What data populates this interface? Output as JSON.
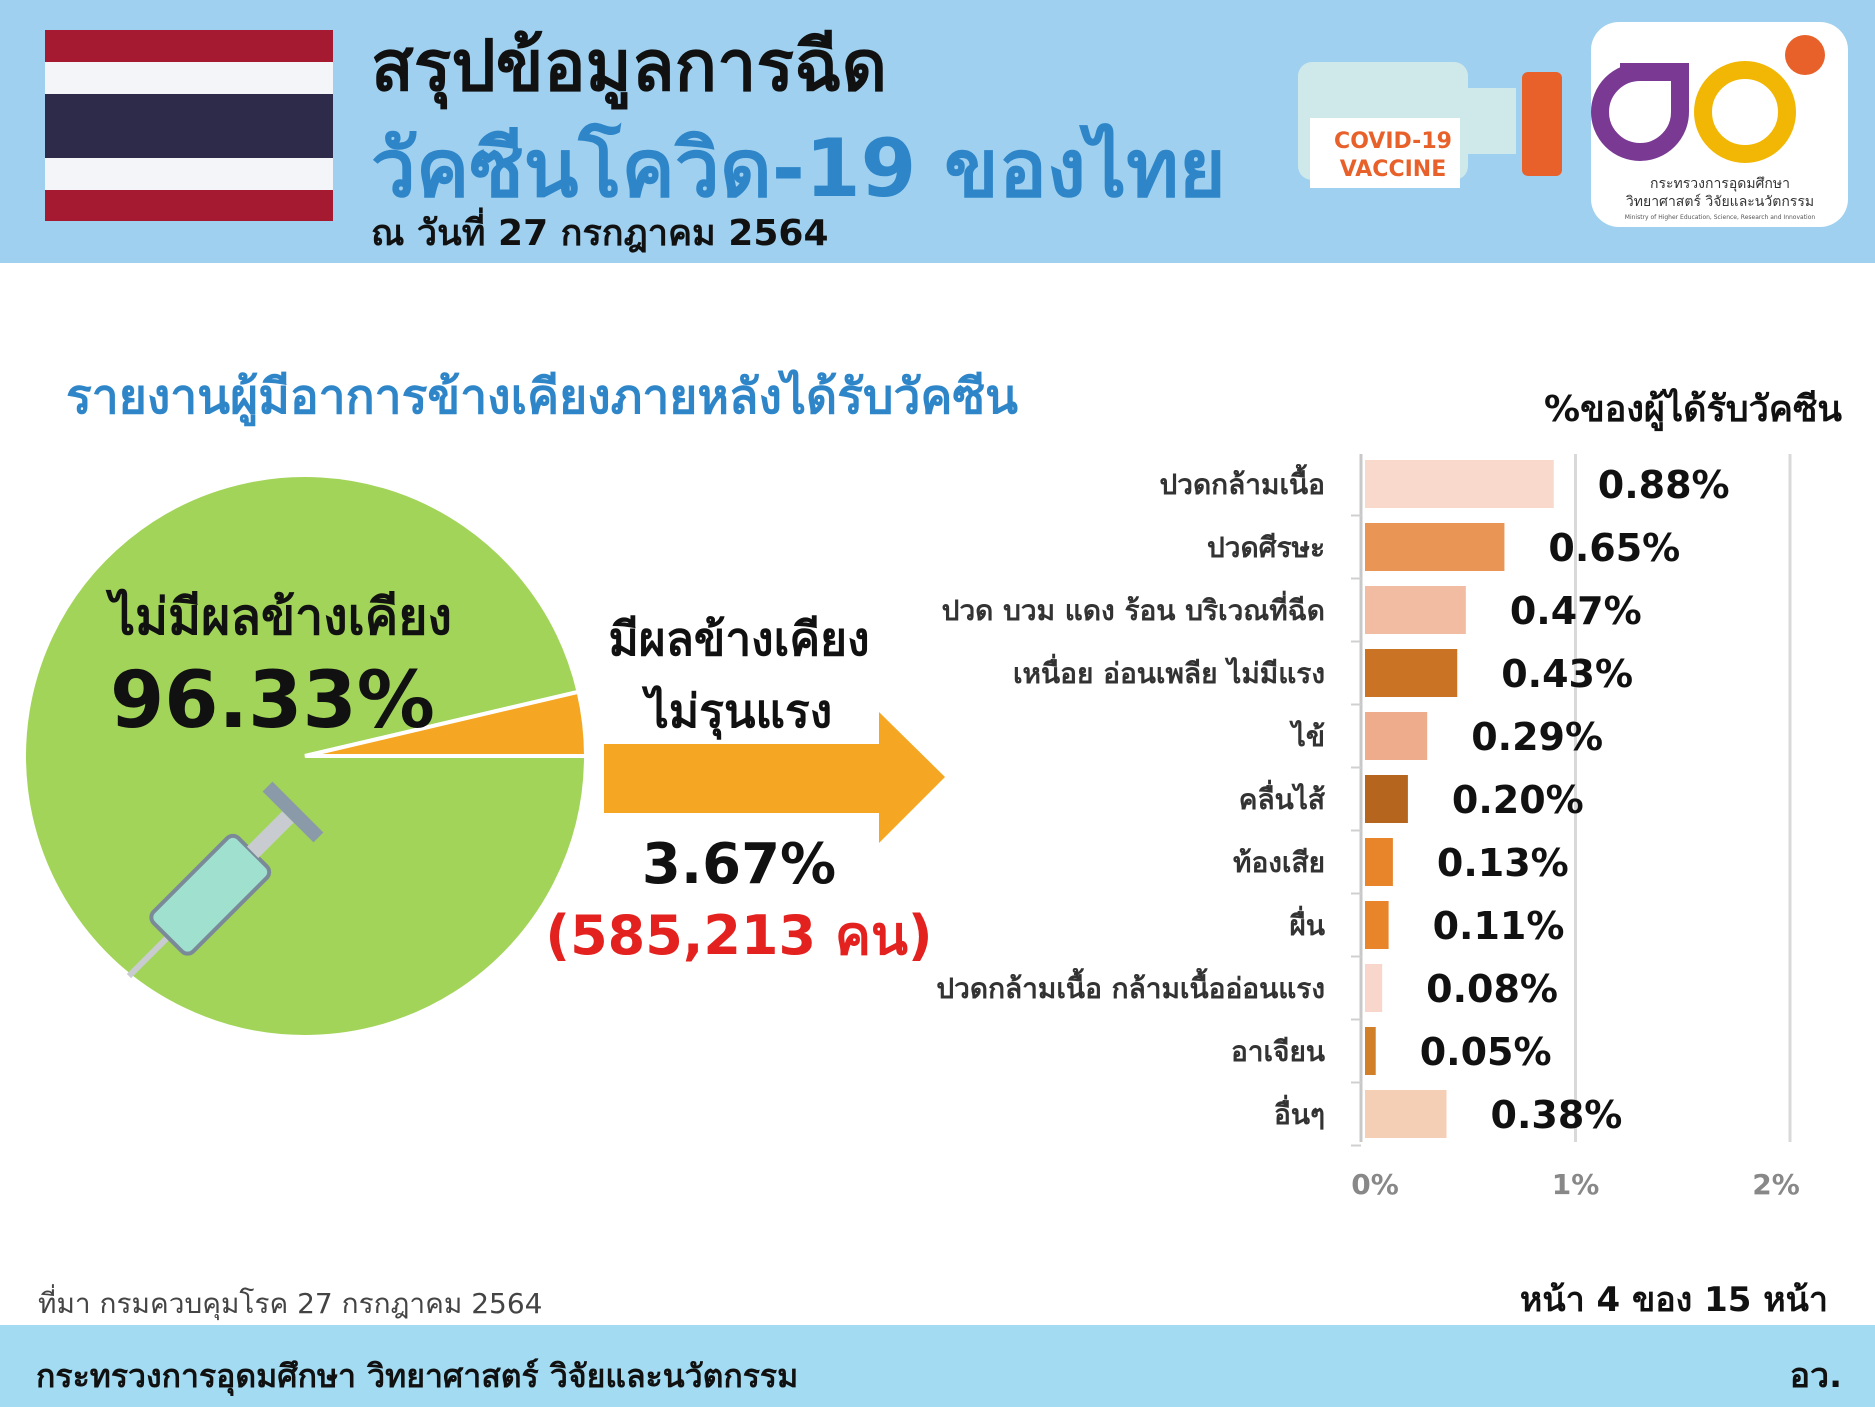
{
  "header": {
    "title": "สรุปข้อมูลการฉีด",
    "subtitle": "วัคซีนโควิด-19 ของไทย",
    "date": "ณ วันที่ 27 กรกฎาคม 2564",
    "vial_label": [
      "COVID-19",
      "VACCINE"
    ],
    "logo_org_th": [
      "กระทรวงการอุดมศึกษา",
      "วิทยาศาสตร์ วิจัยและนวัตกรรม"
    ],
    "logo_org_en": "Ministry of Higher Education, Science, Research and Innovation"
  },
  "section_title": "รายงานผู้มีอาการข้างเคียงภายหลังได้รับวัคซีน",
  "chart_data": [
    {
      "type": "pie",
      "categories": [
        "ไม่มีผลข้างเคียง",
        "มีผลข้างเคียง\nไม่รุนแรง"
      ],
      "values": [
        96.33,
        3.67
      ],
      "value_labels": [
        "96.33%",
        "3.67%"
      ],
      "colors": [
        "#a2d45a",
        "#f5a623"
      ],
      "annotations": [
        "(585,213 คน)"
      ]
    },
    {
      "type": "bar",
      "orientation": "horizontal",
      "title": "%ของผู้ได้รับวัคซีน",
      "categories": [
        "ปวดกล้ามเนื้อ",
        "ปวดศีรษะ",
        "ปวด บวม แดง ร้อน บริเวณที่ฉีด",
        "เหนื่อย อ่อนเพลีย ไม่มีแรง",
        "ไข้",
        "คลื่นไส้",
        "ท้องเสีย",
        "ผื่น",
        "ปวดกล้ามเนื้อ กล้ามเนื้ออ่อนแรง",
        "อาเจียน",
        "อื่นๆ"
      ],
      "values": [
        0.88,
        0.65,
        0.47,
        0.43,
        0.29,
        0.2,
        0.13,
        0.11,
        0.08,
        0.05,
        0.38
      ],
      "value_labels": [
        "0.88%",
        "0.65%",
        "0.47%",
        "0.43%",
        "0.29%",
        "0.20%",
        "0.13%",
        "0.11%",
        "0.08%",
        "0.05%",
        "0.38%"
      ],
      "colors": [
        "#f8d9cc",
        "#e89555",
        "#f2bca2",
        "#cb7325",
        "#efac8c",
        "#b5651d",
        "#e8852b",
        "#e8852b",
        "#f8d6cc",
        "#d27f2a",
        "#f5cfb5"
      ],
      "xlim": [
        0,
        2
      ],
      "xticks": [
        {
          "value": 0,
          "label": "0%"
        },
        {
          "value": 1,
          "label": "1%"
        },
        {
          "value": 2,
          "label": "2%"
        }
      ],
      "grid": true
    }
  ],
  "source": "ที่มา กรมควบคุมโรค 27 กรกฎาคม 2564",
  "page": "หน้า 4 ของ 15 หน้า",
  "footer": {
    "org": "กระทรวงการอุดมศึกษา วิทยาศาสตร์ วิจัยและนวัตกรรม",
    "abbr": "อว."
  }
}
